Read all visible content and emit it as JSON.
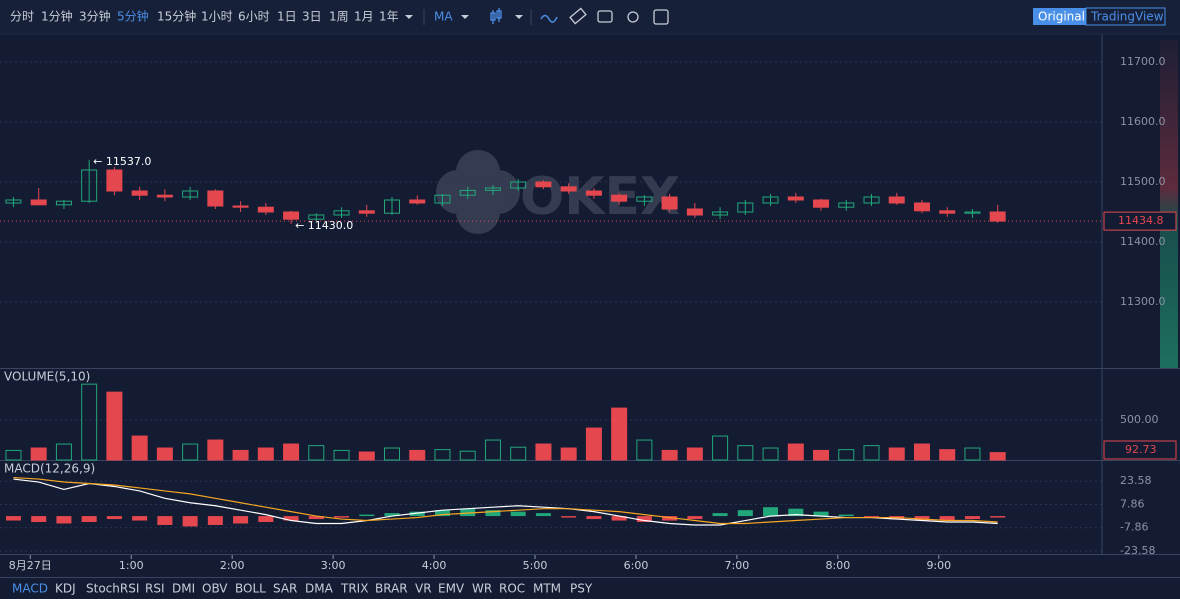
{
  "toolbar": {
    "intervals": [
      "分时",
      "1分钟",
      "3分钟",
      "5分钟",
      "15分钟",
      "1小时",
      "6小时",
      "1日",
      "3日",
      "1周",
      "1月",
      "1年"
    ],
    "active": 3,
    "indicator": "MA",
    "views": [
      "Original",
      "TradingView"
    ]
  },
  "watermark": "OKEX",
  "chart_data": {
    "type": "candlestick",
    "xlim": [
      -18,
      637
    ],
    "xticks": [
      {
        "value": 0,
        "label": "8月27日"
      },
      {
        "value": 60,
        "label": "1:00"
      },
      {
        "value": 120,
        "label": "2:00"
      },
      {
        "value": 180,
        "label": "3:00"
      },
      {
        "value": 240,
        "label": "4:00"
      },
      {
        "value": 300,
        "label": "5:00"
      },
      {
        "value": 360,
        "label": "6:00"
      },
      {
        "value": 420,
        "label": "7:00"
      },
      {
        "value": 480,
        "label": "8:00"
      },
      {
        "value": 540,
        "label": "9:00"
      }
    ],
    "ylim": [
      11190,
      11745
    ],
    "yticks": [
      {
        "value": 11300,
        "label": "11300.0"
      },
      {
        "value": 11400,
        "label": "11400.0"
      },
      {
        "value": 11500,
        "label": "11500.0"
      },
      {
        "value": 11600,
        "label": "11600.0"
      },
      {
        "value": 11700,
        "label": "11700.0"
      }
    ],
    "up_color": "#22a77b",
    "down_color": "#e5474f",
    "x": [
      -10,
      5,
      20,
      35,
      50,
      65,
      80,
      95,
      110,
      125,
      140,
      155,
      170,
      185,
      200,
      215,
      230,
      245,
      260,
      275,
      290,
      305,
      320,
      335,
      350,
      365,
      380,
      395,
      410,
      425,
      440,
      455,
      470,
      485,
      500,
      515,
      530,
      545,
      560,
      575
    ],
    "candles": [
      [
        11465,
        11475,
        11458,
        11470
      ],
      [
        11470,
        11490,
        11462,
        11462
      ],
      [
        11462,
        11470,
        11455,
        11468
      ],
      [
        11468,
        11537,
        11465,
        11520
      ],
      [
        11520,
        11525,
        11478,
        11485
      ],
      [
        11485,
        11492,
        11470,
        11478
      ],
      [
        11478,
        11488,
        11468,
        11475
      ],
      [
        11475,
        11492,
        11470,
        11485
      ],
      [
        11485,
        11488,
        11455,
        11460
      ],
      [
        11460,
        11468,
        11450,
        11458
      ],
      [
        11458,
        11465,
        11445,
        11450
      ],
      [
        11450,
        11452,
        11430,
        11438
      ],
      [
        11438,
        11448,
        11432,
        11445
      ],
      [
        11445,
        11458,
        11440,
        11452
      ],
      [
        11452,
        11462,
        11442,
        11448
      ],
      [
        11448,
        11475,
        11445,
        11470
      ],
      [
        11470,
        11478,
        11462,
        11465
      ],
      [
        11465,
        11480,
        11460,
        11478
      ],
      [
        11478,
        11492,
        11472,
        11486
      ],
      [
        11486,
        11495,
        11478,
        11490
      ],
      [
        11490,
        11505,
        11485,
        11500
      ],
      [
        11500,
        11503,
        11488,
        11492
      ],
      [
        11492,
        11498,
        11480,
        11485
      ],
      [
        11485,
        11490,
        11472,
        11478
      ],
      [
        11478,
        11482,
        11462,
        11468
      ],
      [
        11468,
        11478,
        11460,
        11475
      ],
      [
        11475,
        11480,
        11450,
        11455
      ],
      [
        11455,
        11465,
        11440,
        11445
      ],
      [
        11445,
        11458,
        11438,
        11450
      ],
      [
        11450,
        11470,
        11445,
        11465
      ],
      [
        11465,
        11480,
        11460,
        11475
      ],
      [
        11475,
        11482,
        11465,
        11470
      ],
      [
        11470,
        11472,
        11452,
        11458
      ],
      [
        11458,
        11470,
        11452,
        11465
      ],
      [
        11465,
        11480,
        11460,
        11475
      ],
      [
        11475,
        11482,
        11462,
        11465
      ],
      [
        11465,
        11470,
        11448,
        11452
      ],
      [
        11452,
        11458,
        11442,
        11448
      ],
      [
        11448,
        11455,
        11440,
        11450
      ],
      [
        11450,
        11462,
        11432,
        11434.8
      ]
    ],
    "annotations": [
      {
        "text": "← 11537.0",
        "x": 35,
        "y": 11537
      },
      {
        "text": "← 11430.0",
        "x": 155,
        "y": 11430
      }
    ],
    "volume": {
      "title": "VOLUME(5,10)",
      "ylim": [
        0,
        1140
      ],
      "yticks": [
        {
          "value": 500,
          "label": "500.00"
        }
      ],
      "values": [
        120,
        150,
        200,
        950,
        850,
        300,
        150,
        200,
        250,
        120,
        150,
        200,
        180,
        120,
        100,
        150,
        120,
        130,
        110,
        250,
        160,
        200,
        150,
        400,
        650,
        250,
        120,
        150,
        300,
        180,
        150,
        200,
        120,
        130,
        180,
        150,
        200,
        130,
        150,
        92.73
      ]
    },
    "macd": {
      "title": "MACD(12,26,9)",
      "ylim": [
        -25.6,
        37.2
      ],
      "yticks": [
        -23.58,
        -7.86,
        7.86,
        23.58
      ],
      "hist": [
        -3,
        -4,
        -5,
        -4,
        -2,
        -3,
        -6,
        -7,
        -6,
        -5,
        -4,
        -3,
        -2,
        -1,
        1,
        2,
        3,
        4,
        5,
        4,
        3,
        2,
        -1,
        -2,
        -3,
        -4,
        -3,
        -2,
        2,
        4,
        6,
        5,
        3,
        1,
        -1,
        -2,
        -3,
        -3,
        -2,
        -1
      ],
      "series": [
        {
          "name": "DIF",
          "color": "#ffffff",
          "values": [
            25,
            23,
            18,
            22,
            20,
            17,
            12,
            9,
            7,
            4,
            1,
            -3,
            -5,
            -5,
            -3,
            0,
            2,
            4,
            5,
            6,
            7,
            6,
            5,
            3,
            0,
            -3,
            -5,
            -6,
            -6,
            -3,
            0,
            1,
            0,
            -1,
            -1,
            -2,
            -3,
            -4,
            -4,
            -5
          ]
        },
        {
          "name": "DEA",
          "color": "#f5a623",
          "values": [
            26,
            25,
            23,
            22,
            21,
            19,
            17,
            15,
            12,
            9,
            6,
            3,
            0,
            -2,
            -3,
            -2,
            -1,
            1,
            2,
            3,
            4,
            5,
            5,
            4,
            3,
            1,
            -1,
            -3,
            -5,
            -5,
            -4,
            -3,
            -2,
            -1,
            -1,
            -1,
            -2,
            -3,
            -3,
            -4
          ]
        }
      ]
    }
  },
  "indicators": {
    "items": [
      "MACD",
      "KDJ",
      "StochRSI",
      "RSI",
      "DMI",
      "OBV",
      "BOLL",
      "SAR",
      "DMA",
      "TRIX",
      "BRAR",
      "VR",
      "EMV",
      "WR",
      "ROC",
      "MTM",
      "PSY"
    ],
    "active": 0
  }
}
